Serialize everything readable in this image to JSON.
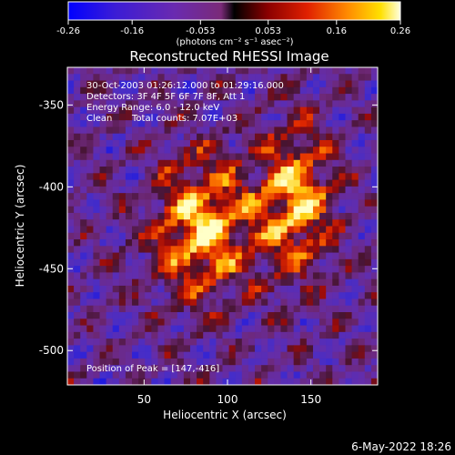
{
  "chart_data": {
    "type": "heatmap",
    "title": "Reconstructed RHESSI Image",
    "xlabel": "Heliocentric X (arcsec)",
    "ylabel": "Heliocentric Y (arcsec)",
    "xlim": [
      4,
      190
    ],
    "ylim": [
      -521,
      -327
    ],
    "xticks": [
      50,
      100,
      150
    ],
    "yticks": [
      -350,
      -400,
      -450,
      -500
    ],
    "colorbar": {
      "min": -0.26,
      "max": 0.26,
      "ticks": [
        "-0.26",
        "-0.16",
        "-0.053",
        "0.053",
        "0.16",
        "0.26"
      ],
      "unit_label": "(photons cm⁻² s⁻¹ asec⁻²)"
    },
    "annotations": {
      "time": "30-Oct-2003 01:26:12.000 to 01:29:16.000",
      "detectors": "Detectors: 3F 4F 5F 6F 7F 8F, Att 1",
      "energy": "Energy Range: 6.0 - 12.0 keV",
      "method": "Clean",
      "counts": "Total counts: 7.07E+03",
      "peak": "Position of Peak = [147,-416]"
    },
    "peak": [
      147,
      -416
    ],
    "grid_cols": 48,
    "grid_rows": 48
  },
  "footer": {
    "date": "6-May-2022 18:26"
  }
}
